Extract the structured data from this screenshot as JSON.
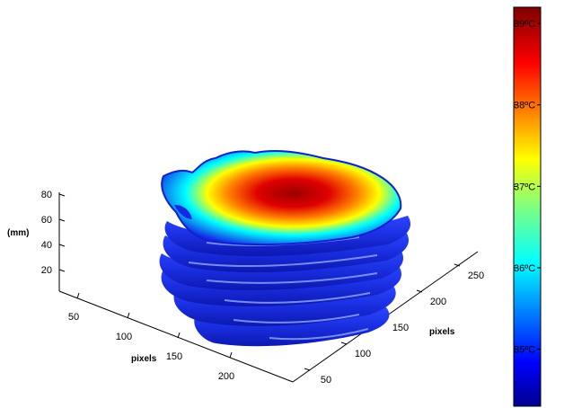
{
  "chart_data": {
    "type": "surface-3d",
    "title": "",
    "axes": {
      "z": {
        "label": "(mm)",
        "ticks": [
          "20",
          "40",
          "60",
          "80"
        ]
      },
      "x": {
        "label": "pixels",
        "ticks": [
          "50",
          "100",
          "150",
          "200"
        ]
      },
      "y": {
        "label": "pixels",
        "ticks": [
          "50",
          "100",
          "150",
          "200",
          "250"
        ]
      }
    },
    "colorbar": {
      "ticks": [
        "35ºC",
        "36ºC",
        "37ºC",
        "38ºC",
        "39ºC"
      ],
      "colormap": "jet",
      "range": [
        34.3,
        39.2
      ]
    },
    "layers": {
      "description_free": true,
      "count": 7
    },
    "colors": {
      "cold": "#0a1ed8",
      "hot": "#a00000"
    }
  }
}
